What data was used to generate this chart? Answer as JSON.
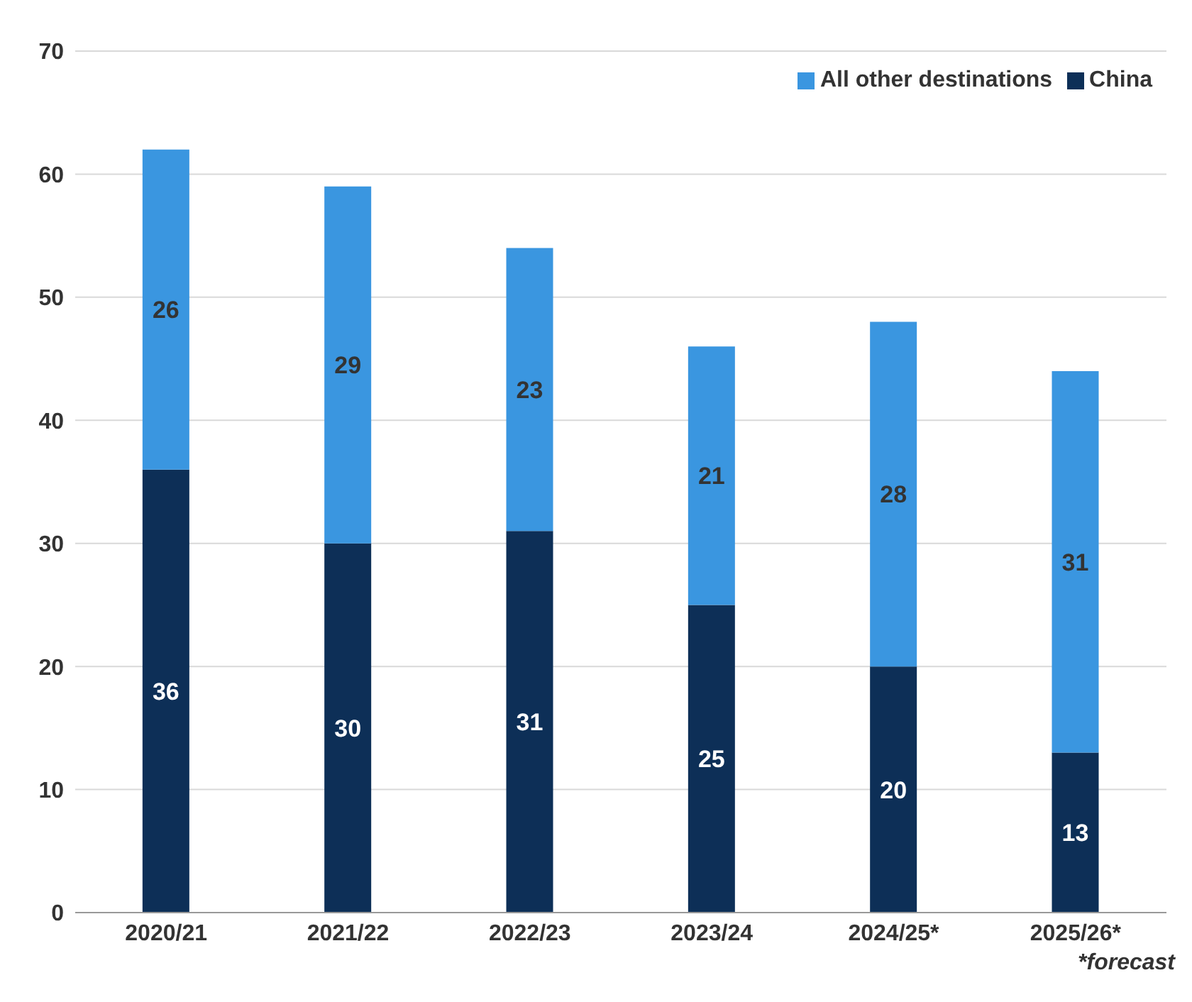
{
  "chart_data": {
    "type": "bar",
    "stacked": true,
    "categories": [
      "2020/21",
      "2021/22",
      "2022/23",
      "2023/24",
      "2024/25*",
      "2025/26*"
    ],
    "series": [
      {
        "name": "China",
        "color": "#0d2f57",
        "values": [
          36,
          30,
          31,
          25,
          20,
          13
        ]
      },
      {
        "name": "All other destinations",
        "color": "#3a96e0",
        "values": [
          26,
          29,
          23,
          21,
          28,
          31
        ]
      }
    ],
    "ylim": [
      0,
      70
    ],
    "yticks": [
      0,
      10,
      20,
      30,
      40,
      50,
      60,
      70
    ],
    "grid": "y",
    "legend": "top right",
    "data_labels": true,
    "annotations": [
      "*forecast"
    ]
  }
}
